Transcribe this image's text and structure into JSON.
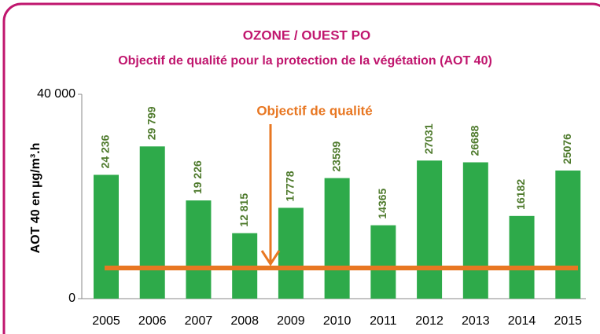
{
  "chart_data": {
    "type": "bar",
    "title": "OZONE / OUEST PO",
    "subtitle": "Objectif de qualité pour la protection de la végétation (AOT 40)",
    "y_label": "AOT 40 en µg/m³.h",
    "categories": [
      "2005",
      "2006",
      "2007",
      "2008",
      "2009",
      "2010",
      "2011",
      "2012",
      "2013",
      "2014",
      "2015"
    ],
    "values": [
      24236,
      29799,
      19226,
      12815,
      17778,
      23599,
      14365,
      27031,
      26688,
      16182,
      25076
    ],
    "value_labels": [
      "24 236",
      "29 799",
      "19 226",
      "12 815",
      "17778",
      "23599",
      "14365",
      "27031",
      "26688",
      "16182",
      "25076"
    ],
    "color": "#2eaa4a",
    "ylim": [
      0,
      40000
    ],
    "yticks": [
      0,
      {
        "value": 40000,
        "label": "40 000"
      }
    ],
    "annotation": "Objectif de qualité",
    "objective_value": 6000,
    "objective_color": "#e87722"
  }
}
